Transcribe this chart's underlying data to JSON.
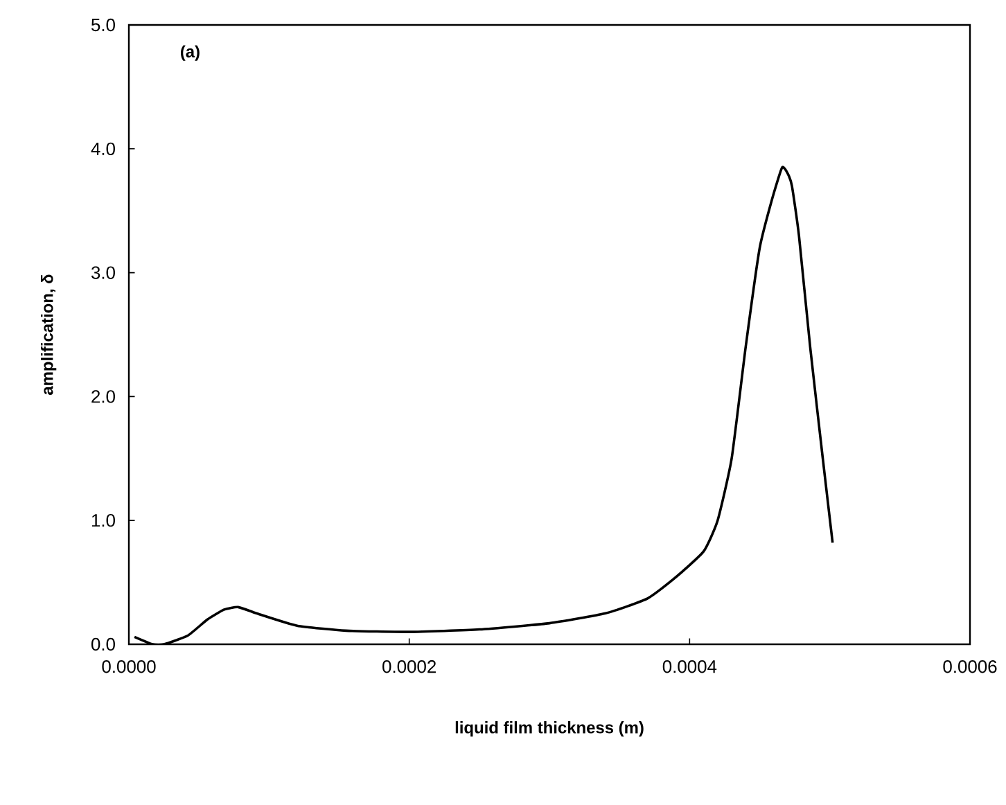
{
  "chart_data": {
    "type": "line",
    "xlabel": "liquid film thickness (m)",
    "ylabel": "amplification, δ",
    "annotations": [
      "(a)"
    ],
    "x": [
      4e-06,
      1.7e-05,
      2.5e-05,
      4.2e-05,
      5.6e-05,
      6.8e-05,
      7.8e-05,
      9.1e-05,
      0.00012,
      0.000155,
      0.0002,
      0.00025,
      0.0003,
      0.00034,
      0.00037,
      0.00039,
      0.00041,
      0.00042,
      0.00043,
      0.00044,
      0.00045,
      0.000459,
      0.000466,
      0.00047,
      0.000473,
      0.000478,
      0.000486,
      0.000495,
      0.000502
    ],
    "series": [
      {
        "color": "#000000",
        "values": [
          0.06,
          0.0,
          0.0,
          0.07,
          0.2,
          0.28,
          0.3,
          0.25,
          0.15,
          0.11,
          0.1,
          0.12,
          0.17,
          0.25,
          0.37,
          0.54,
          0.75,
          1.0,
          1.5,
          2.4,
          3.2,
          3.6,
          3.85,
          3.8,
          3.7,
          3.3,
          2.4,
          1.5,
          0.82
        ]
      }
    ],
    "xlim": [
      0,
      0.0006
    ],
    "ylim": [
      0,
      5
    ],
    "xticks": [
      {
        "value": 0,
        "label": "0.0000"
      },
      {
        "value": 0.0002,
        "label": "0.0002"
      },
      {
        "value": 0.0004,
        "label": "0.0004"
      },
      {
        "value": 0.0006,
        "label": "0.0006"
      }
    ],
    "yticks": [
      {
        "value": 0,
        "label": "0.0"
      },
      {
        "value": 1,
        "label": "1.0"
      },
      {
        "value": 2,
        "label": "2.0"
      },
      {
        "value": 3,
        "label": "3.0"
      },
      {
        "value": 4,
        "label": "4.0"
      },
      {
        "value": 5,
        "label": "5.0"
      }
    ],
    "grid": false,
    "marker": "none",
    "line_style": "solid"
  }
}
